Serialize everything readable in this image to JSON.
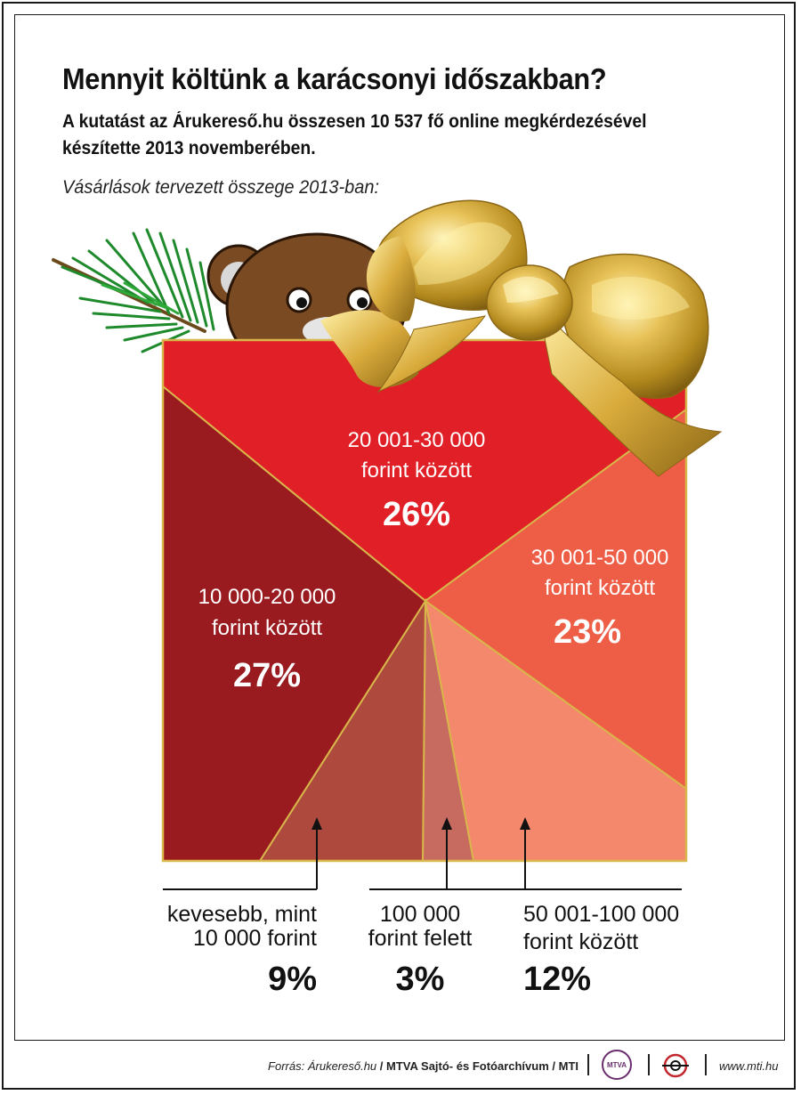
{
  "title": "Mennyit költünk a karácsonyi időszakban?",
  "subtitle": "A kutatást az Árukereső.hu összesen 10 537 fő online megkérdezésével készítette 2013 novemberében.",
  "caption": "Vásárlások tervezett összege 2013-ban:",
  "chart_data": {
    "type": "pie",
    "unit": "%",
    "categories": [
      "20 001-30 000 forint között",
      "30 001-50 000 forint között",
      "50 001-100 000 forint között",
      "100 000 forint felett",
      "kevesebb, mint 10 000 forint",
      "10 000-20 000 forint között"
    ],
    "values": [
      26,
      23,
      12,
      3,
      9,
      27
    ],
    "colors": [
      "#e11f26",
      "#ee5d45",
      "#f4886c",
      "#c76a60",
      "#ad4a3d",
      "#9a1b1f"
    ],
    "slices": [
      {
        "line1": "20 001-30 000",
        "line2": "forint között",
        "value": 26,
        "value_label": "26%"
      },
      {
        "line1": "30 001-50 000",
        "line2": "forint között",
        "value": 23,
        "value_label": "23%"
      },
      {
        "line1": "50 001-100 000",
        "line2": "forint között",
        "value": 12,
        "value_label": "12%"
      },
      {
        "line1": "100 000",
        "line2": "forint felett",
        "value": 3,
        "value_label": "3%"
      },
      {
        "line1": "kevesebb, mint",
        "line2": "10 000 forint",
        "value": 9,
        "value_label": "9%"
      },
      {
        "line1": "10 000-20 000",
        "line2": "forint között",
        "value": 27,
        "value_label": "27%"
      }
    ]
  },
  "footer": {
    "source_label": "Forrás:",
    "source_name": "Árukereső.hu",
    "archive": "MTVA Sajtó- és Fotóarchívum / MTI",
    "logo_mtva": "MTVA",
    "site": "www.mti.hu"
  },
  "icons": [
    "pine-branch-icon",
    "teddy-bear-icon",
    "gift-bow-icon",
    "mtva-logo-icon",
    "mti-logo-icon",
    "pointer-arrow-icon"
  ],
  "accent_color": "#e11f26"
}
